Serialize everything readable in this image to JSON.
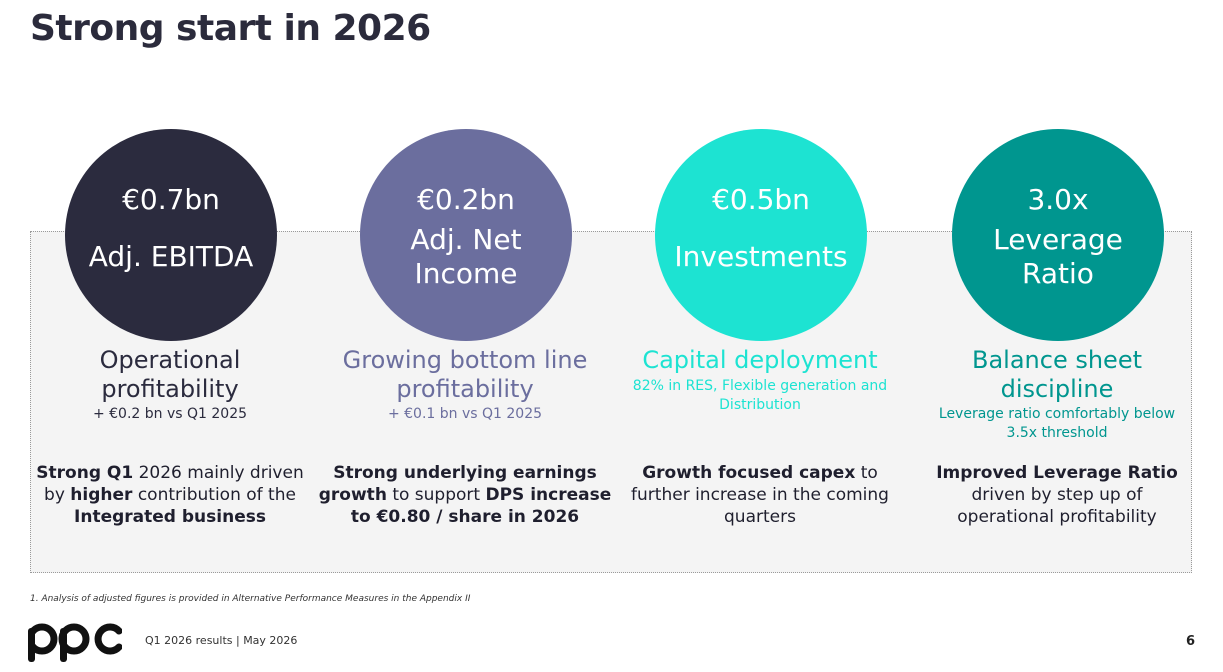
{
  "title": "Strong start in 2026",
  "colors": {
    "dark": "#2b2b3e",
    "purple": "#6b6e9e",
    "cyan": "#1de3d2",
    "teal": "#00968f"
  },
  "columns": [
    {
      "value": "€0.7bn",
      "label_lines": [
        "Adj. EBITDA"
      ],
      "heading_lines": [
        "Operational",
        "profitability"
      ],
      "sub_lines": [
        "+ €0.2 bn vs Q1 2025"
      ],
      "desc": [
        [
          {
            "t": "Strong Q1",
            "b": true
          },
          {
            "t": " 2026 mainly driven",
            "b": false
          }
        ],
        [
          {
            "t": "by ",
            "b": false
          },
          {
            "t": "higher",
            "b": true
          },
          {
            "t": " contribution of the",
            "b": false
          }
        ],
        [
          {
            "t": "Integrated business",
            "b": true
          }
        ]
      ]
    },
    {
      "value": "€0.2bn",
      "label_lines": [
        "Adj. Net",
        "Income"
      ],
      "heading_lines": [
        "Growing bottom line",
        "profitability"
      ],
      "sub_lines": [
        "+ €0.1 bn vs Q1 2025"
      ],
      "desc": [
        [
          {
            "t": "Strong underlying earnings",
            "b": true
          }
        ],
        [
          {
            "t": "growth",
            "b": true
          },
          {
            "t": " to support ",
            "b": false
          },
          {
            "t": "DPS increase",
            "b": true
          }
        ],
        [
          {
            "t": "to €0.80 / share in 2026",
            "b": true
          }
        ]
      ]
    },
    {
      "value": "€0.5bn",
      "label_lines": [
        "Investments"
      ],
      "heading_lines": [
        "Capital deployment"
      ],
      "sub_lines": [
        "82% in RES, Flexible generation and",
        "Distribution"
      ],
      "desc": [
        [
          {
            "t": "Growth focused capex",
            "b": true
          },
          {
            "t": " to",
            "b": false
          }
        ],
        [
          {
            "t": "further increase in the coming",
            "b": false
          }
        ],
        [
          {
            "t": "quarters",
            "b": false
          }
        ]
      ]
    },
    {
      "value": "3.0x",
      "label_lines": [
        "Leverage",
        "Ratio"
      ],
      "heading_lines": [
        "Balance sheet",
        "discipline"
      ],
      "sub_lines": [
        "Leverage ratio comfortably below",
        "3.5x threshold"
      ],
      "desc": [
        [
          {
            "t": "Improved Leverage Ratio",
            "b": true
          }
        ],
        [
          {
            "t": "driven by step up of",
            "b": false
          }
        ],
        [
          {
            "t": "operational profitability",
            "b": false
          }
        ]
      ]
    }
  ],
  "footnote": "1. Analysis of adjusted figures is provided in Alternative Performance Measures in the Appendix II",
  "footer_text": "Q1 2026 results | May 2026",
  "page_number": "6",
  "logo_text": "ppc"
}
